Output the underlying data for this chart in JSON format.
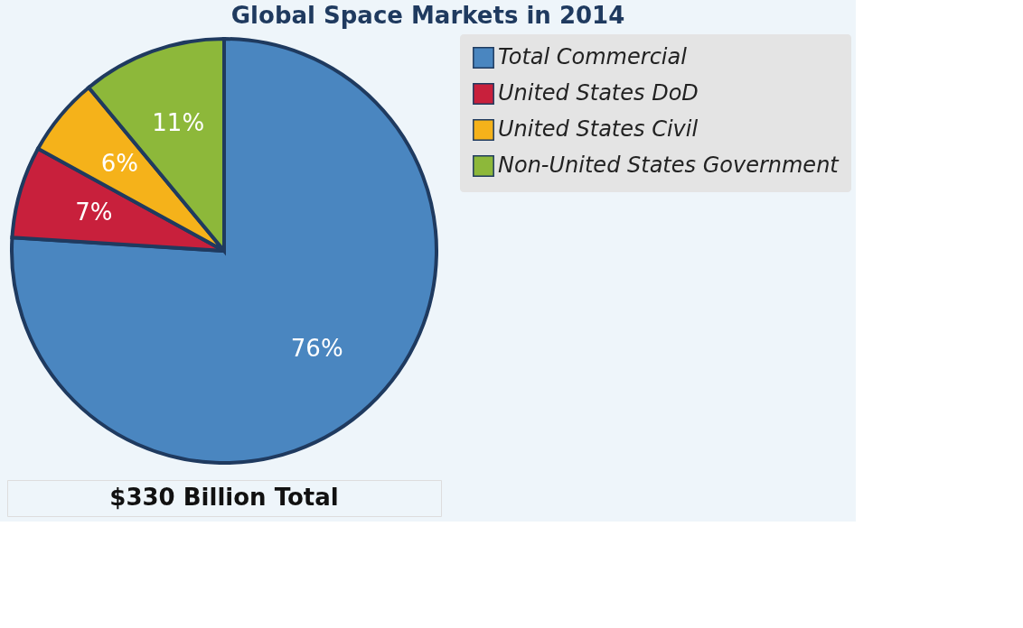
{
  "chart_data": {
    "type": "pie",
    "title": "Global Space Markets in 2014",
    "categories": [
      "Total Commercial",
      "United States DoD",
      "United States Civil",
      "Non-United States Government"
    ],
    "values": [
      76,
      7,
      6,
      11
    ],
    "colors": [
      "#4a86c0",
      "#c8203c",
      "#f5b21a",
      "#8db83a"
    ],
    "value_labels": [
      "76%",
      "7%",
      "6%",
      "11%"
    ],
    "legend": "right",
    "annotations": [
      "$330 Billion Total"
    ]
  }
}
